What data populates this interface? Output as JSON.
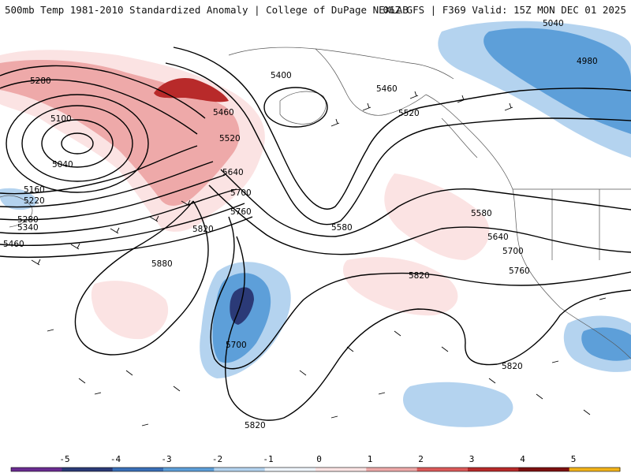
{
  "header": {
    "left": "500mb Temp 1981-2010 Standardized Anomaly | College of DuPage NEXLAB",
    "right": "06Z GFS | F369 Valid: 15Z MON DEC 01 2025"
  },
  "contour_labels": [
    "5280",
    "5100",
    "5040",
    "5160",
    "5220",
    "5280",
    "5340",
    "5460",
    "5400",
    "5460",
    "5520",
    "5640",
    "5700",
    "5760",
    "5820",
    "5880",
    "5700",
    "5820",
    "5580",
    "5460",
    "5520",
    "5580",
    "5640",
    "5700",
    "5760",
    "5820",
    "5820",
    "5040",
    "4980"
  ],
  "legend": {
    "ticks": [
      "-5",
      "-4",
      "-3",
      "-2",
      "-1",
      "0",
      "1",
      "2",
      "3",
      "4",
      "5"
    ],
    "colors": [
      "#6a2c91",
      "#2b3a77",
      "#3a6fb8",
      "#5d9fd9",
      "#b4d3ef",
      "#eef4fb",
      "#fbe3e3",
      "#eea9a9",
      "#dc5a5a",
      "#b82a2a",
      "#7d1010",
      "#f2b31a"
    ]
  }
}
